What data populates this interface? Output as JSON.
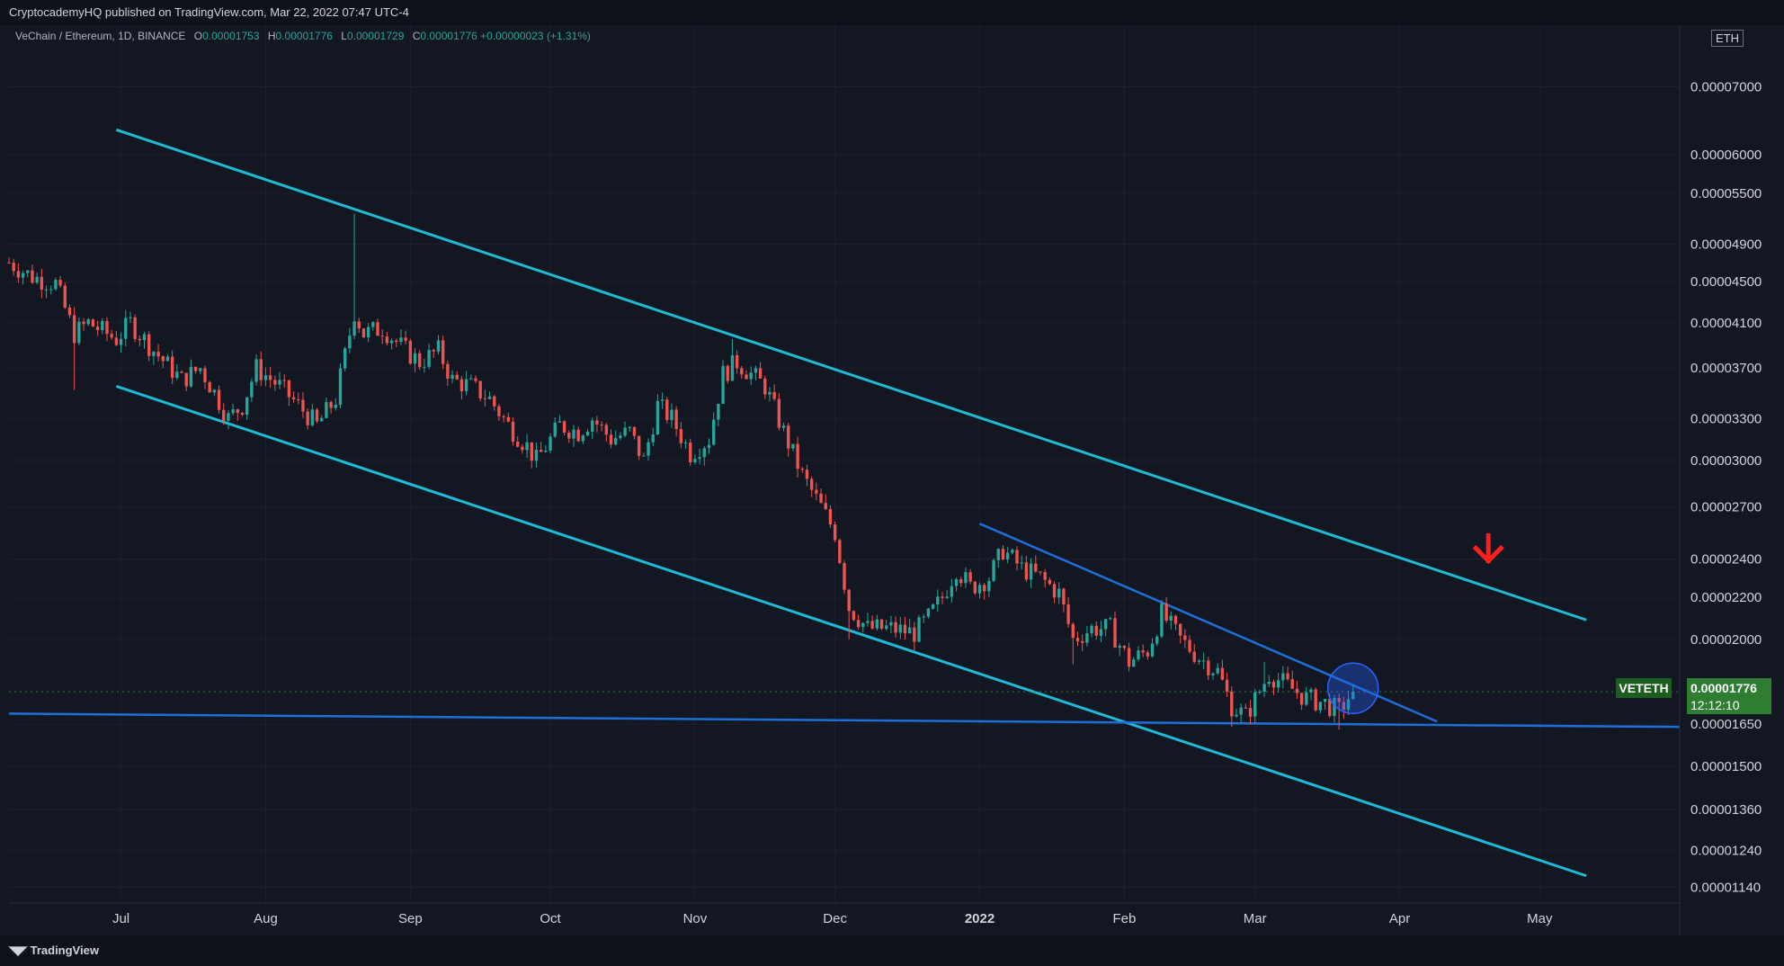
{
  "header": {
    "published": "CryptocademyHQ published on TradingView.com, Mar 22, 2022 07:47 UTC-4"
  },
  "legend": {
    "symbol": "VeChain / Ethereum, 1D, BINANCE",
    "o_label": "O",
    "o": "0.00001753",
    "h_label": "H",
    "h": "0.00001776",
    "l_label": "L",
    "l": "0.00001729",
    "c_label": "C",
    "c": "0.00001776",
    "change": "+0.00000023 (+1.31%)"
  },
  "currency": "ETH",
  "ticker": {
    "symbol": "VETETH",
    "price": "0.00001776",
    "countdown": "12:12:10"
  },
  "footer": {
    "brand": "TradingView"
  },
  "colors": {
    "background": "#131722",
    "up": "#26a69a",
    "down": "#ef5350",
    "channel": "#1fbad6",
    "trendline": "#1e6fd9",
    "support": "#1e6fd9",
    "arrow": "#ff1e1e",
    "highlight": "#2962ff"
  },
  "chart_data": {
    "type": "candlestick",
    "scale": "log",
    "ylim": [
      1.1e-05,
      8.05e-05
    ],
    "xlim": [
      "2021-06-07",
      "2022-05-31"
    ],
    "yticks": [
      "0.00001140",
      "0.00001240",
      "0.00001360",
      "0.00001500",
      "0.00001650",
      "0.00002000",
      "0.00002200",
      "0.00002400",
      "0.00002700",
      "0.00003000",
      "0.00003300",
      "0.00003700",
      "0.00004100",
      "0.00004500",
      "0.00004900",
      "0.00005500",
      "0.00006000",
      "0.00007000"
    ],
    "xticks": [
      {
        "date": "2021-07-01",
        "label": "Jul"
      },
      {
        "date": "2021-08-01",
        "label": "Aug"
      },
      {
        "date": "2021-09-01",
        "label": "Sep"
      },
      {
        "date": "2021-10-01",
        "label": "Oct"
      },
      {
        "date": "2021-11-01",
        "label": "Nov"
      },
      {
        "date": "2021-12-01",
        "label": "Dec"
      },
      {
        "date": "2022-01-01",
        "label": "2022"
      },
      {
        "date": "2022-02-01",
        "label": "Feb"
      },
      {
        "date": "2022-03-01",
        "label": "Mar"
      },
      {
        "date": "2022-04-01",
        "label": "Apr"
      },
      {
        "date": "2022-05-01",
        "label": "May"
      }
    ],
    "close_path": [
      [
        "2021-06-07",
        4.7e-05
      ],
      [
        "2021-06-12",
        4.55e-05
      ],
      [
        "2021-06-17",
        4.48e-05
      ],
      [
        "2021-06-21",
        4e-05
      ],
      [
        "2021-06-24",
        4.1e-05
      ],
      [
        "2021-06-30",
        3.95e-05
      ],
      [
        "2021-07-03",
        4.1e-05
      ],
      [
        "2021-07-08",
        3.85e-05
      ],
      [
        "2021-07-14",
        3.6e-05
      ],
      [
        "2021-07-18",
        3.7e-05
      ],
      [
        "2021-07-21",
        3.5e-05
      ],
      [
        "2021-07-24",
        3.3e-05
      ],
      [
        "2021-07-27",
        3.4e-05
      ],
      [
        "2021-07-30",
        3.7e-05
      ],
      [
        "2021-08-04",
        3.55e-05
      ],
      [
        "2021-08-08",
        3.4e-05
      ],
      [
        "2021-08-12",
        3.25e-05
      ],
      [
        "2021-08-16",
        3.45e-05
      ],
      [
        "2021-08-20",
        4.2e-05
      ],
      [
        "2021-08-22",
        4e-05
      ],
      [
        "2021-08-26",
        4.05e-05
      ],
      [
        "2021-08-31",
        3.85e-05
      ],
      [
        "2021-09-03",
        3.75e-05
      ],
      [
        "2021-09-07",
        3.85e-05
      ],
      [
        "2021-09-10",
        3.6e-05
      ],
      [
        "2021-09-14",
        3.55e-05
      ],
      [
        "2021-09-18",
        3.45e-05
      ],
      [
        "2021-09-22",
        3.25e-05
      ],
      [
        "2021-09-26",
        3.1e-05
      ],
      [
        "2021-09-28",
        3e-05
      ],
      [
        "2021-10-03",
        3.25e-05
      ],
      [
        "2021-10-07",
        3.2e-05
      ],
      [
        "2021-10-10",
        3.3e-05
      ],
      [
        "2021-10-14",
        3.15e-05
      ],
      [
        "2021-10-18",
        3.2e-05
      ],
      [
        "2021-10-21",
        3e-05
      ],
      [
        "2021-10-24",
        3.4e-05
      ],
      [
        "2021-10-27",
        3.3e-05
      ],
      [
        "2021-10-31",
        3.05e-05
      ],
      [
        "2021-11-04",
        3.15e-05
      ],
      [
        "2021-11-07",
        3.65e-05
      ],
      [
        "2021-11-10",
        3.75e-05
      ],
      [
        "2021-11-13",
        3.65e-05
      ],
      [
        "2021-11-16",
        3.55e-05
      ],
      [
        "2021-11-20",
        3.2e-05
      ],
      [
        "2021-11-24",
        2.9e-05
      ],
      [
        "2021-11-28",
        2.7e-05
      ],
      [
        "2021-12-01",
        2.55e-05
      ],
      [
        "2021-12-04",
        2.15e-05
      ],
      [
        "2021-12-08",
        2.05e-05
      ],
      [
        "2021-12-13",
        2.05e-05
      ],
      [
        "2021-12-18",
        2.03e-05
      ],
      [
        "2021-12-21",
        2.1e-05
      ],
      [
        "2021-12-24",
        2.2e-05
      ],
      [
        "2021-12-27",
        2.35e-05
      ],
      [
        "2021-12-30",
        2.25e-05
      ],
      [
        "2022-01-03",
        2.3e-05
      ],
      [
        "2022-01-06",
        2.45e-05
      ],
      [
        "2022-01-10",
        2.35e-05
      ],
      [
        "2022-01-14",
        2.3e-05
      ],
      [
        "2022-01-18",
        2.22e-05
      ],
      [
        "2022-01-21",
        2e-05
      ],
      [
        "2022-01-25",
        2.05e-05
      ],
      [
        "2022-01-29",
        2.05e-05
      ],
      [
        "2022-02-02",
        1.9e-05
      ],
      [
        "2022-02-06",
        1.95e-05
      ],
      [
        "2022-02-09",
        2.12e-05
      ],
      [
        "2022-02-13",
        2e-05
      ],
      [
        "2022-02-17",
        1.92e-05
      ],
      [
        "2022-02-21",
        1.86e-05
      ],
      [
        "2022-02-24",
        1.72e-05
      ],
      [
        "2022-02-27",
        1.68e-05
      ],
      [
        "2022-03-02",
        1.78e-05
      ],
      [
        "2022-03-04",
        1.85e-05
      ],
      [
        "2022-03-08",
        1.8e-05
      ],
      [
        "2022-03-12",
        1.75e-05
      ],
      [
        "2022-03-16",
        1.73e-05
      ],
      [
        "2022-03-19",
        1.7e-05
      ],
      [
        "2022-03-22",
        1.78e-05
      ]
    ],
    "wicks": [
      {
        "date": "2021-06-21",
        "low": 3.52e-05
      },
      {
        "date": "2021-08-20",
        "high": 5.25e-05,
        "low": 3.95e-05
      },
      {
        "date": "2021-11-09",
        "high": 3.95e-05
      },
      {
        "date": "2021-12-04",
        "low": 2e-05
      },
      {
        "date": "2022-01-21",
        "low": 1.89e-05
      },
      {
        "date": "2022-02-24",
        "low": 1.64e-05
      },
      {
        "date": "2022-03-03",
        "high": 1.9e-05
      },
      {
        "date": "2022-03-19",
        "low": 1.63e-05
      }
    ],
    "last_close": 1.776e-05,
    "drawings": [
      {
        "name": "channel-upper",
        "points": [
          [
            "2021-06-30",
            6.35e-05
          ],
          [
            "2022-05-11",
            2.09e-05
          ]
        ]
      },
      {
        "name": "channel-lower",
        "points": [
          [
            "2021-06-30",
            3.55e-05
          ],
          [
            "2022-05-11",
            1.17e-05
          ]
        ]
      },
      {
        "name": "wedge-trendline",
        "points": [
          [
            "2022-01-01",
            2.6e-05
          ],
          [
            "2022-04-09",
            1.66e-05
          ]
        ]
      },
      {
        "name": "support-line",
        "points": [
          [
            "2021-06-07",
            1.69e-05
          ],
          [
            "2022-05-31",
            1.64e-05
          ]
        ]
      }
    ],
    "annotations": [
      {
        "name": "breakout-circle",
        "center": [
          "2022-03-22",
          1.79e-05
        ]
      },
      {
        "name": "down-arrow",
        "at": [
          "2022-04-20",
          2.4e-05
        ]
      }
    ]
  }
}
